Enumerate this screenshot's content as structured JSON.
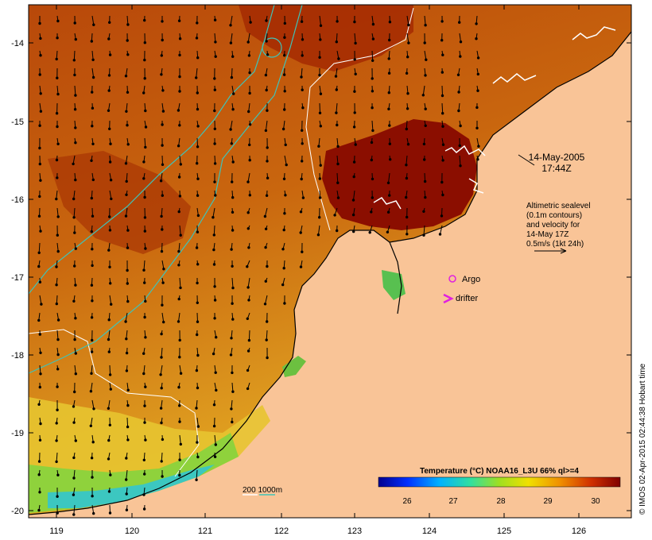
{
  "map": {
    "lon_ticks": [
      "119",
      "120",
      "121",
      "122",
      "123",
      "124",
      "125",
      "126"
    ],
    "lat_ticks": [
      "-14",
      "-15",
      "-16",
      "-17",
      "-18",
      "-19",
      "-20"
    ],
    "timestamp_line1": "14-May-2005",
    "timestamp_line2": "17:44Z",
    "altimetry_lines": [
      "Altimetric sealevel",
      "(0.1m contours)",
      "and velocity for",
      "14-May 17Z",
      "0.5m/s (1kt 24h)"
    ],
    "legend_argo": "Argo",
    "legend_drifter": "drifter",
    "depth_scale_label": "200  1000m",
    "colorbar_title": "Temperature (°C) NOAA16_L3U 66% ql>=4",
    "colorbar_ticks": [
      "26",
      "27",
      "28",
      "29",
      "30"
    ],
    "credit": "© IMOS 02-Apr-2015 02:44:38 Hobart time",
    "colors": {
      "land": "#f9c497",
      "sea_warm": "#8b1a00",
      "sea_mid": "#c55c05",
      "sea_cool": "#d8961a",
      "bathy_200": "#ffffff",
      "bathy_1000": "#3fc3b8",
      "marker": "#e020e0"
    }
  }
}
